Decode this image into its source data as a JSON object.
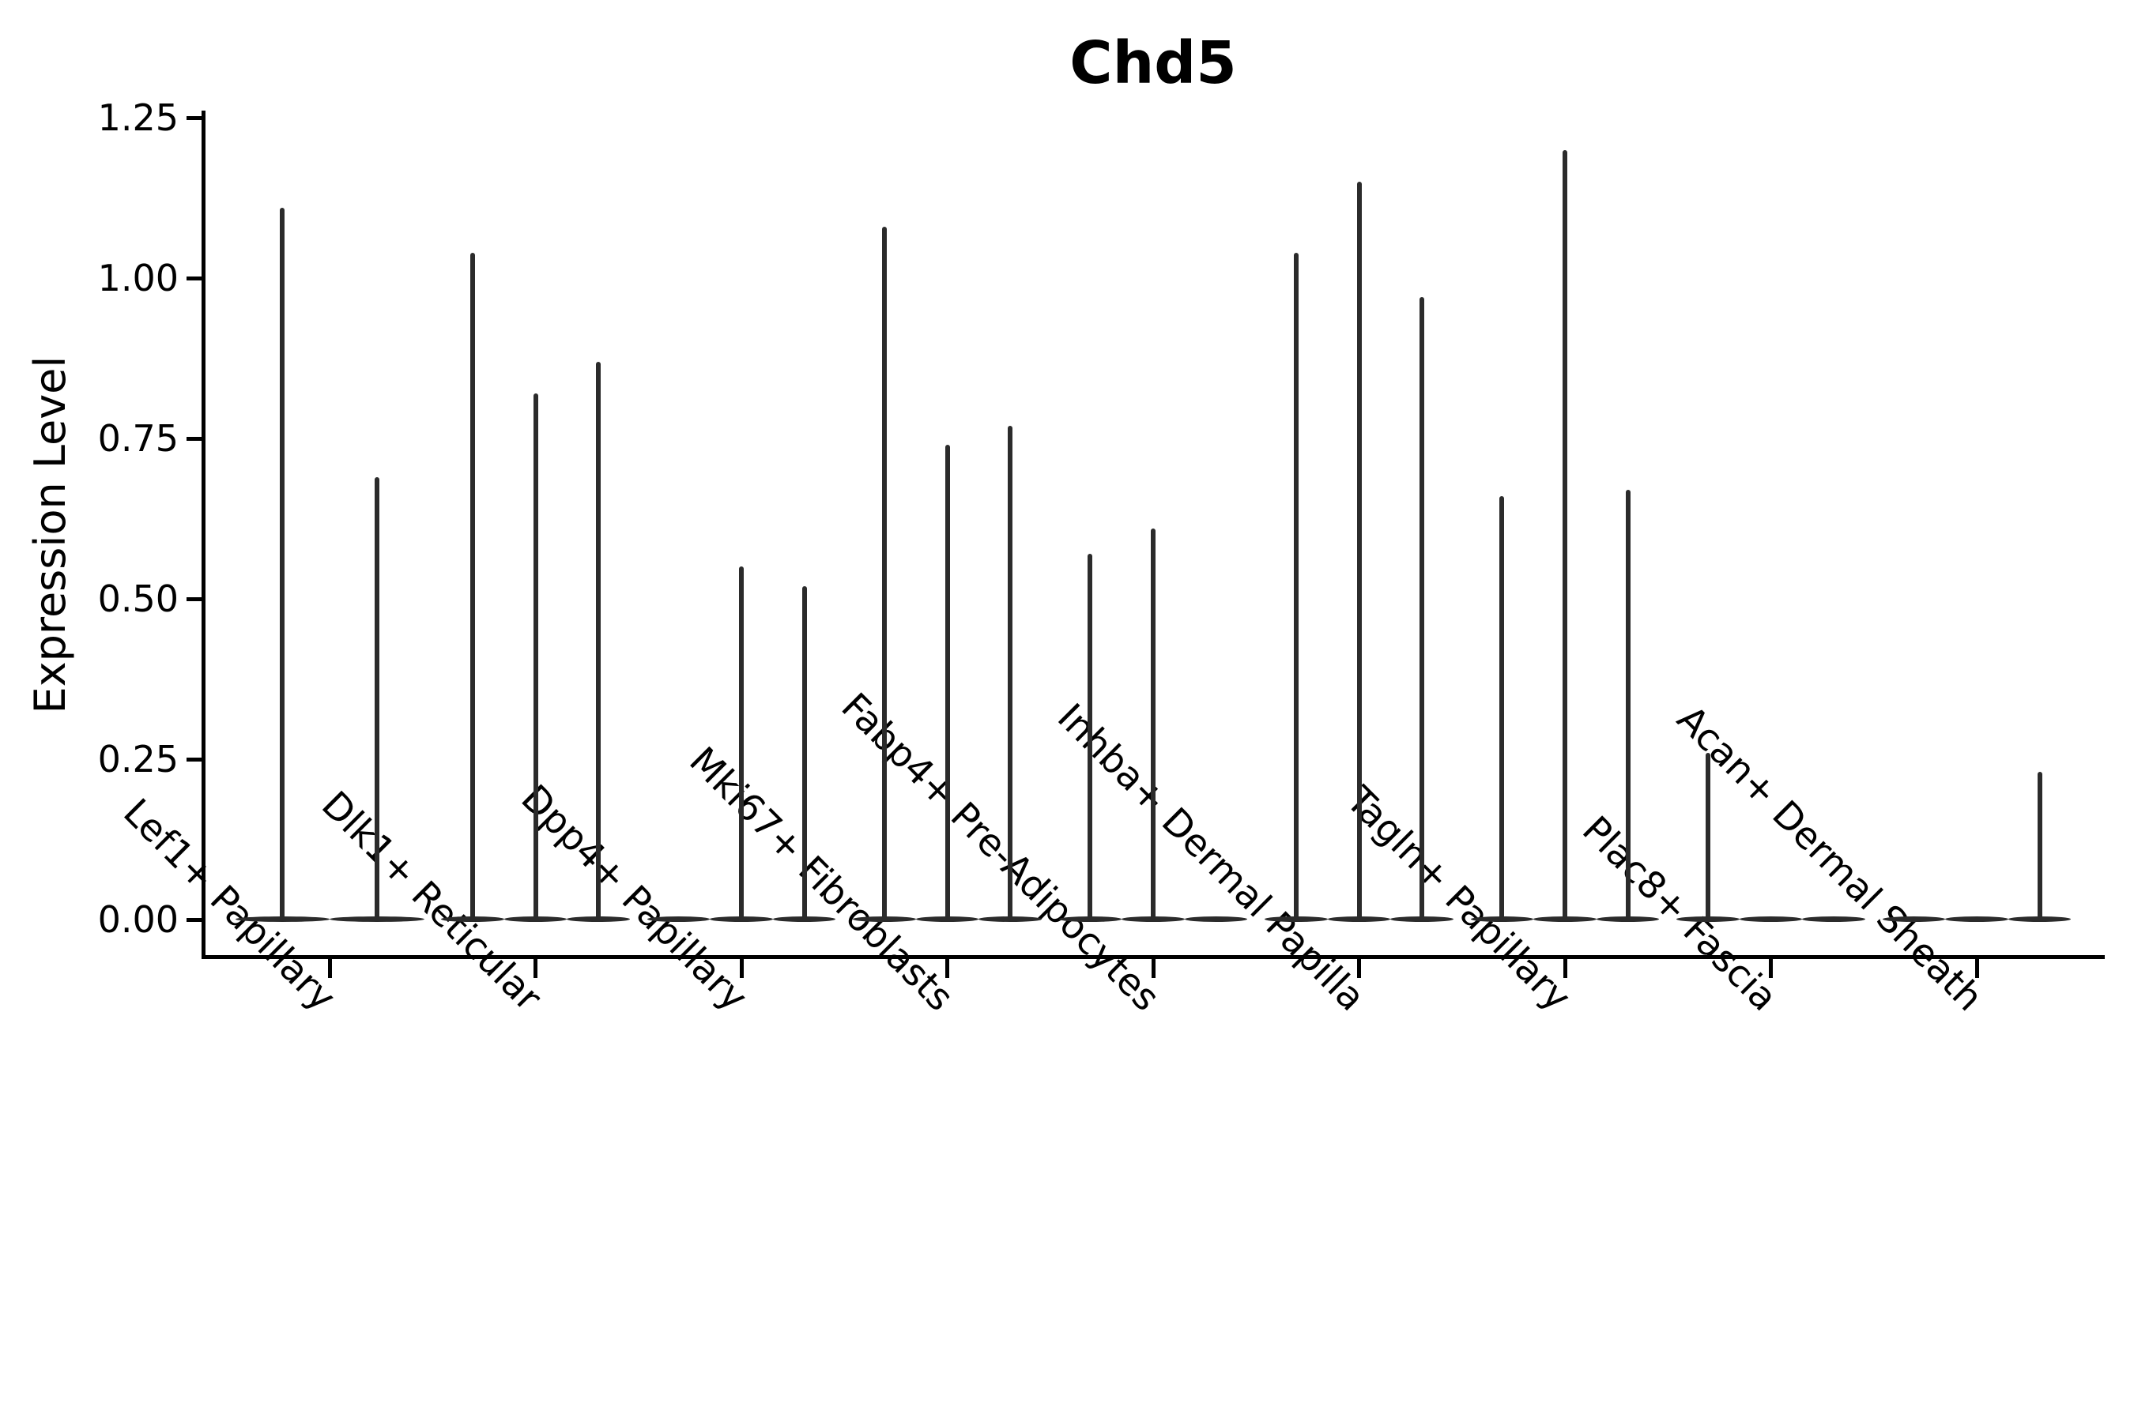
{
  "title": "Chd5",
  "ylabel": "Expression Level",
  "chart_data": {
    "type": "violin",
    "title": "Chd5",
    "xlabel": "",
    "ylabel": "Expression Level",
    "ylim": [
      -0.06,
      1.26
    ],
    "grid": false,
    "legend": "none",
    "yticks": [
      0.0,
      0.25,
      0.5,
      0.75,
      1.0,
      1.25
    ],
    "ytick_labels": [
      "0.00",
      "0.25",
      "0.50",
      "0.75",
      "1.00",
      "1.25"
    ],
    "description": "Thin spike-shaped violins (expression mostly zero with sparse tails); each category holds 2-3 sub-violins; value listed is the max expression reached by each violin tail, 0 = flat violin with no tail",
    "categories": [
      "Lef1+ Papillary",
      "Dlk1+ Reticular",
      "Dpp4+ Papillary",
      "Mki67+ Fibroblasts",
      "Fabp4+ Pre-Adipocytes",
      "Inhba+ Dermal Papilla",
      "Tagln+ Papillary",
      "Plac8+ Fascia",
      "Acan+ Dermal Sheath"
    ],
    "series": [
      {
        "category": "Lef1+ Papillary",
        "violin_max_values": [
          1.11,
          0.69
        ]
      },
      {
        "category": "Dlk1+ Reticular",
        "violin_max_values": [
          1.04,
          0.82,
          0.87
        ]
      },
      {
        "category": "Dpp4+ Papillary",
        "violin_max_values": [
          0,
          0.55,
          0.52
        ]
      },
      {
        "category": "Mki67+ Fibroblasts",
        "violin_max_values": [
          1.08,
          0.74,
          0.77
        ]
      },
      {
        "category": "Fabp4+ Pre-Adipocytes",
        "violin_max_values": [
          0.57,
          0.61,
          0
        ]
      },
      {
        "category": "Inhba+ Dermal Papilla",
        "violin_max_values": [
          1.04,
          1.15,
          0.97
        ]
      },
      {
        "category": "Tagln+ Papillary",
        "violin_max_values": [
          0.66,
          1.2,
          0.67
        ]
      },
      {
        "category": "Plac8+ Fascia",
        "violin_max_values": [
          0.26,
          0,
          0
        ]
      },
      {
        "category": "Acan+ Dermal Sheath",
        "violin_max_values": [
          0,
          0,
          0.23
        ]
      }
    ]
  },
  "colors": {
    "violin": "#2b2b2b",
    "axis": "#000000",
    "text": "#000000",
    "background": "#ffffff"
  }
}
